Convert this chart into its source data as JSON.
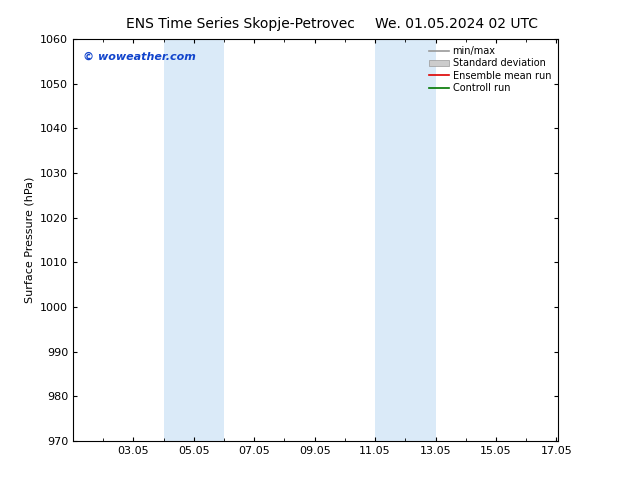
{
  "title_left": "ENS Time Series Skopje-Petrovec",
  "title_right": "We. 01.05.2024 02 UTC",
  "ylabel": "Surface Pressure (hPa)",
  "ylim": [
    970,
    1060
  ],
  "yticks": [
    970,
    980,
    990,
    1000,
    1010,
    1020,
    1030,
    1040,
    1050,
    1060
  ],
  "xlim": [
    1.0,
    17.05
  ],
  "xtick_labels": [
    "03.05",
    "05.05",
    "07.05",
    "09.05",
    "11.05",
    "13.05",
    "15.05",
    "17.05"
  ],
  "xtick_positions": [
    3.0,
    5.0,
    7.0,
    9.0,
    11.0,
    13.0,
    15.0,
    17.0
  ],
  "watermark": "© woweather.com",
  "watermark_color": "#1144cc",
  "shaded_bands": [
    {
      "x_start": 4.0,
      "x_end": 6.0,
      "color": "#daeaf8"
    },
    {
      "x_start": 11.0,
      "x_end": 13.0,
      "color": "#daeaf8"
    }
  ],
  "legend_items": [
    {
      "label": "min/max",
      "color": "#999999",
      "type": "line"
    },
    {
      "label": "Standard deviation",
      "color": "#cccccc",
      "type": "band"
    },
    {
      "label": "Ensemble mean run",
      "color": "#dd0000",
      "type": "line"
    },
    {
      "label": "Controll run",
      "color": "#007700",
      "type": "line"
    }
  ],
  "background_color": "#ffffff",
  "plot_bg_color": "#ffffff",
  "spine_color": "#000000",
  "title_fontsize": 10,
  "label_fontsize": 8,
  "tick_fontsize": 8,
  "legend_fontsize": 7
}
